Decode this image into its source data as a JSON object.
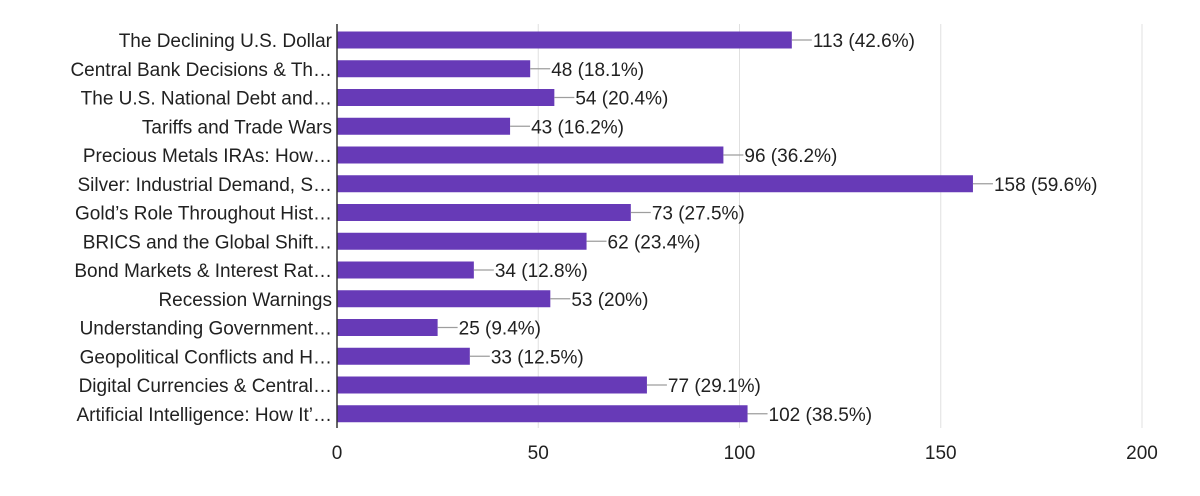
{
  "chart_data": {
    "type": "bar",
    "orientation": "horizontal",
    "categories": [
      "The Declining U.S. Dollar",
      "Central Bank Decisions & Th…",
      "The U.S. National Debt and…",
      "Tariffs and Trade Wars",
      "Precious Metals IRAs: How…",
      "Silver: Industrial Demand, S…",
      "Gold’s Role Throughout Hist…",
      "BRICS and the Global Shift…",
      "Bond Markets & Interest Rat…",
      "Recession Warnings",
      "Understanding Government…",
      "Geopolitical Conflicts and H…",
      "Digital Currencies & Central…",
      "Artificial Intelligence: How It’…"
    ],
    "values": [
      113,
      48,
      54,
      43,
      96,
      158,
      73,
      62,
      34,
      53,
      25,
      33,
      77,
      102
    ],
    "data_labels": [
      "113 (42.6%)",
      "48 (18.1%)",
      "54 (20.4%)",
      "43 (16.2%)",
      "96 (36.2%)",
      "158 (59.6%)",
      "73 (27.5%)",
      "62 (23.4%)",
      "34 (12.8%)",
      "53 (20%)",
      "25 (9.4%)",
      "33 (12.5%)",
      "77 (29.1%)",
      "102 (38.5%)"
    ],
    "xlim": [
      0,
      200
    ],
    "x_ticks": [
      "0",
      "50",
      "100",
      "150",
      "200"
    ],
    "x_tick_values": [
      0,
      50,
      100,
      150,
      200
    ],
    "grid": true,
    "colors": {
      "bar": "#673ab7",
      "grid": "#e0e0e0",
      "axis": "#333333",
      "leader": "#9e9e9e"
    }
  }
}
